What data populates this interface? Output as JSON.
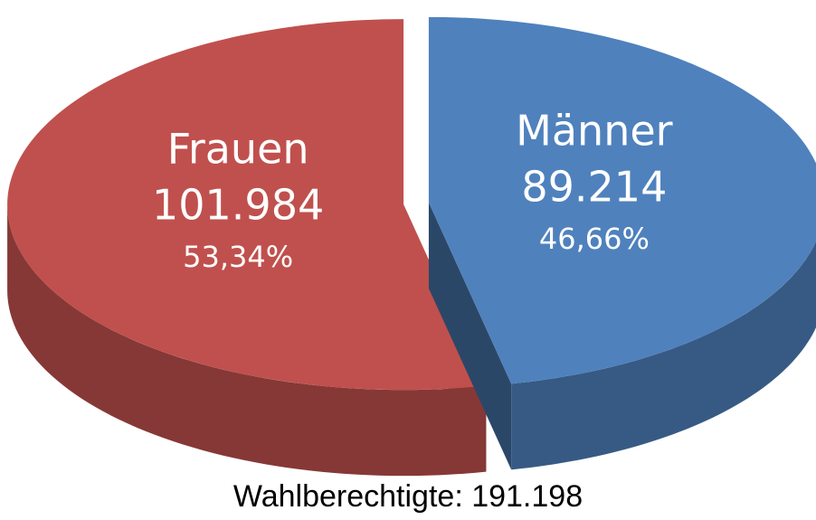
{
  "chart_data": {
    "type": "pie",
    "title": "Wahlberechtigte: 191.198",
    "categories": [
      "Frauen",
      "Männer"
    ],
    "values": [
      101984,
      89214
    ],
    "value_labels": [
      "101.984",
      "89.214"
    ],
    "percentages": [
      53.34,
      46.66
    ],
    "percentage_labels": [
      "53,34%",
      "46,66%"
    ],
    "colors": [
      "#c0504d",
      "#4f81bd"
    ]
  }
}
